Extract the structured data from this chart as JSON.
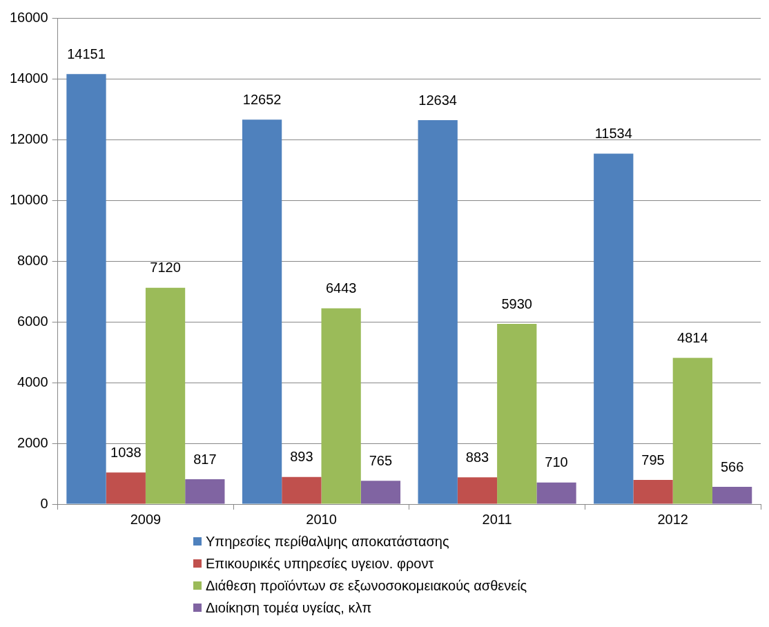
{
  "chart_data": {
    "type": "bar",
    "categories": [
      "2009",
      "2010",
      "2011",
      "2012"
    ],
    "series": [
      {
        "name": "Υπηρεσίες περίθαλψης αποκατάστασης",
        "color": "#4f81bd",
        "values": [
          14151,
          12652,
          12634,
          11534
        ]
      },
      {
        "name": "Επικουρικές υπηρεσίες υγειον. φροντ",
        "color": "#c0504d",
        "values": [
          1038,
          893,
          883,
          795
        ]
      },
      {
        "name": "Διάθεση προϊόντων σε εξωνοσοκομειακούς ασθενείς",
        "color": "#9bbb59",
        "values": [
          7120,
          6443,
          5930,
          4814
        ]
      },
      {
        "name": "Διοίκηση τομέα υγείας, κλπ",
        "color": "#8064a2",
        "values": [
          817,
          765,
          710,
          566
        ]
      }
    ],
    "ylim": [
      0,
      16000
    ],
    "yticks": [
      0,
      2000,
      4000,
      6000,
      8000,
      10000,
      12000,
      14000,
      16000
    ],
    "grid": "y",
    "legend": "bottom",
    "data_labels": true
  }
}
